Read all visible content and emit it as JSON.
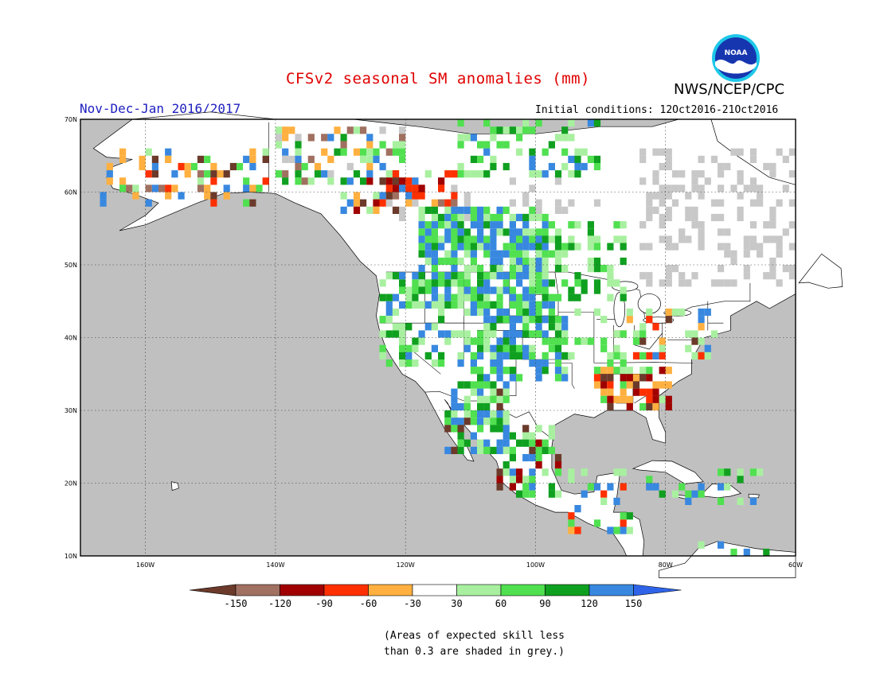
{
  "title": "CFSv2 seasonal SM anomalies (mm)",
  "period": "Nov-Dec-Jan 2016/2017",
  "initial_conditions": "Initial conditions: 12Oct2016-21Oct2016",
  "agency": "NWS/NCEP/CPC",
  "logo_text": "NOAA",
  "axes": {
    "lat_labels": [
      "70N",
      "60N",
      "50N",
      "40N",
      "30N",
      "20N",
      "10N"
    ],
    "lon_labels": [
      "160W",
      "140W",
      "120W",
      "100W",
      "80W",
      "60W"
    ]
  },
  "colorbar": {
    "ticks": [
      "-150",
      "-120",
      "-90",
      "-60",
      "-30",
      "30",
      "60",
      "90",
      "120",
      "150"
    ],
    "colors": [
      "#6b3a2a",
      "#a07060",
      "#a00000",
      "#ff3000",
      "#ffb040",
      "#ffffff",
      "#a8f0a0",
      "#50e050",
      "#10a020",
      "#3888e0",
      "#2f64e8"
    ]
  },
  "note_line1": "(Areas of expected skill less",
  "note_line2": "than 0.3 are shaded in grey.)",
  "colors": {
    "ocean": "#c0c0c0",
    "no_skill": "#c8c8c8",
    "land": "#ffffff",
    "title": "#e00000",
    "period": "#2020c0"
  }
}
